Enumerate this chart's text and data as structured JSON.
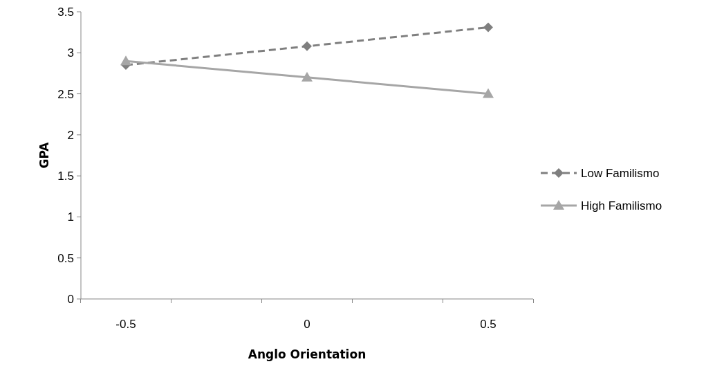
{
  "chart_data": {
    "type": "line",
    "xlabel": "Anglo Orientation",
    "ylabel": "GPA",
    "categories": [
      "-0.5",
      "0",
      "0.5"
    ],
    "series": [
      {
        "name": "Low Familismo",
        "color": "#7f7f7f",
        "values": [
          2.85,
          3.08,
          3.31
        ],
        "marker": "diamond",
        "line_style": "dashed"
      },
      {
        "name": "High Familismo",
        "color": "#a6a6a6",
        "values": [
          2.9,
          2.7,
          2.5
        ],
        "marker": "triangle",
        "line_style": "solid"
      }
    ],
    "ylim": [
      0,
      3.5
    ],
    "yticks": [
      0,
      0.5,
      1,
      1.5,
      2,
      2.5,
      3,
      3.5
    ],
    "grid": false,
    "legend": "right"
  }
}
